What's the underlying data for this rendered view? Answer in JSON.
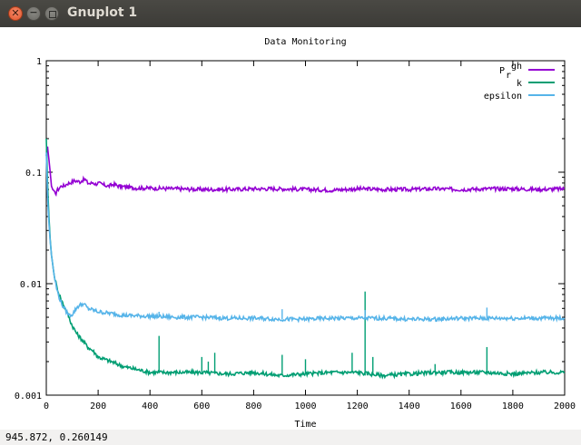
{
  "window": {
    "title": "Gnuplot 1",
    "close_glyph": "✕",
    "minimize_glyph": "−",
    "maximize_glyph": ""
  },
  "status": {
    "coords": "945.872,  0.260149"
  },
  "chart_data": {
    "type": "line",
    "title": "Data Monitoring",
    "xlabel": "Time",
    "ylabel": "",
    "xlim": [
      0,
      2000
    ],
    "ylim": [
      0.001,
      1
    ],
    "yscale": "log",
    "grid": false,
    "legend_position": "top-right",
    "x_ticks": [
      0,
      200,
      400,
      600,
      800,
      1000,
      1200,
      1400,
      1600,
      1800,
      2000
    ],
    "x_tick_labels": [
      "0",
      "200",
      "400",
      "600",
      "800",
      "1000",
      "1200",
      "1400",
      "1600",
      "1800",
      "2000"
    ],
    "y_ticks": [
      1,
      0.1,
      0.01,
      0.001
    ],
    "y_tick_labels": [
      "1",
      "0.1",
      "0.01",
      "0.001"
    ],
    "series": [
      {
        "name": "P_rgh",
        "legend_main": "P",
        "legend_sub": "r",
        "legend_sup": "gh",
        "color": "#9400d3",
        "x": [
          0,
          5,
          10,
          15,
          20,
          25,
          30,
          35,
          40,
          50,
          60,
          70,
          80,
          90,
          100,
          110,
          120,
          130,
          140,
          150,
          160,
          170,
          180,
          190,
          200,
          220,
          240,
          260,
          280,
          300,
          350,
          400,
          500,
          600,
          700,
          800,
          900,
          1000,
          1100,
          1200,
          1300,
          1400,
          1500,
          1600,
          1700,
          1800,
          1900,
          2000
        ],
        "y": [
          0.14,
          0.17,
          0.13,
          0.1,
          0.075,
          0.07,
          0.068,
          0.062,
          0.068,
          0.072,
          0.076,
          0.075,
          0.079,
          0.08,
          0.082,
          0.084,
          0.083,
          0.082,
          0.085,
          0.086,
          0.08,
          0.079,
          0.081,
          0.078,
          0.08,
          0.077,
          0.075,
          0.078,
          0.075,
          0.074,
          0.072,
          0.072,
          0.071,
          0.07,
          0.07,
          0.071,
          0.071,
          0.07,
          0.069,
          0.071,
          0.07,
          0.07,
          0.071,
          0.07,
          0.071,
          0.071,
          0.07,
          0.071
        ]
      },
      {
        "name": "k",
        "legend_main": "k",
        "color": "#009e73",
        "x": [
          0,
          5,
          10,
          15,
          20,
          30,
          40,
          50,
          60,
          80,
          100,
          120,
          140,
          160,
          180,
          200,
          250,
          300,
          350,
          400,
          450,
          500,
          600,
          700,
          800,
          900,
          1000,
          1100,
          1200,
          1300,
          1400,
          1500,
          1600,
          1700,
          1800,
          1900,
          2000
        ],
        "y": [
          0.2,
          0.08,
          0.04,
          0.025,
          0.018,
          0.012,
          0.0095,
          0.008,
          0.007,
          0.0055,
          0.0042,
          0.0035,
          0.0031,
          0.0027,
          0.0025,
          0.0022,
          0.002,
          0.0018,
          0.0017,
          0.0016,
          0.0016,
          0.0016,
          0.0016,
          0.00155,
          0.0016,
          0.0015,
          0.00155,
          0.0016,
          0.0016,
          0.0015,
          0.00155,
          0.0016,
          0.0016,
          0.0016,
          0.00155,
          0.0016,
          0.0016
        ],
        "spikes": [
          {
            "x": 435,
            "y": 0.0034
          },
          {
            "x": 600,
            "y": 0.0022
          },
          {
            "x": 625,
            "y": 0.002
          },
          {
            "x": 650,
            "y": 0.0024
          },
          {
            "x": 910,
            "y": 0.0023
          },
          {
            "x": 1000,
            "y": 0.0021
          },
          {
            "x": 1180,
            "y": 0.0024
          },
          {
            "x": 1230,
            "y": 0.0085
          },
          {
            "x": 1260,
            "y": 0.0022
          },
          {
            "x": 1700,
            "y": 0.0027
          },
          {
            "x": 1500,
            "y": 0.0019
          }
        ]
      },
      {
        "name": "epsilon",
        "legend_main": "epsilon",
        "color": "#56b4e9",
        "x": [
          0,
          5,
          10,
          15,
          20,
          30,
          40,
          50,
          60,
          70,
          80,
          90,
          100,
          120,
          140,
          150,
          160,
          180,
          200,
          250,
          300,
          400,
          500,
          600,
          700,
          800,
          900,
          1000,
          1100,
          1200,
          1300,
          1400,
          1500,
          1600,
          1700,
          1800,
          1900,
          2000
        ],
        "y": [
          0.15,
          0.06,
          0.035,
          0.024,
          0.018,
          0.012,
          0.009,
          0.0075,
          0.0065,
          0.006,
          0.0055,
          0.0052,
          0.0053,
          0.0062,
          0.0066,
          0.0064,
          0.006,
          0.0058,
          0.0056,
          0.0054,
          0.0052,
          0.0051,
          0.005,
          0.005,
          0.0049,
          0.0049,
          0.0048,
          0.0048,
          0.0049,
          0.0049,
          0.0049,
          0.0048,
          0.0048,
          0.0049,
          0.0049,
          0.0049,
          0.0049,
          0.0049
        ],
        "spikes": [
          {
            "x": 435,
            "y": 0.0056
          },
          {
            "x": 910,
            "y": 0.0059
          },
          {
            "x": 1230,
            "y": 0.0058
          },
          {
            "x": 1700,
            "y": 0.0061
          }
        ]
      }
    ]
  }
}
